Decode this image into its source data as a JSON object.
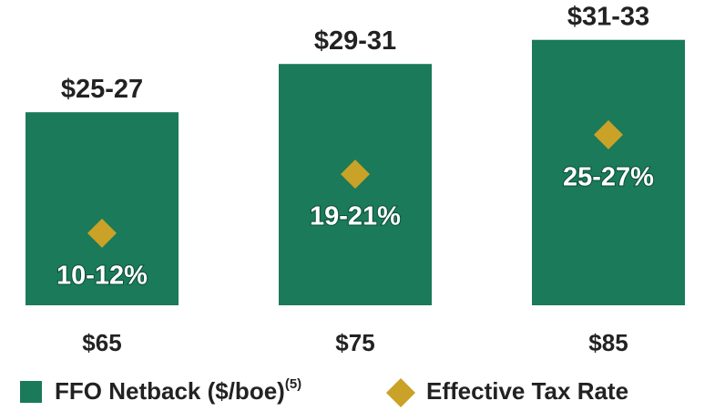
{
  "chart_data": {
    "type": "bar",
    "categories": [
      "$65",
      "$75",
      "$85"
    ],
    "series": [
      {
        "name": "FFO Netback ($/boe)",
        "name_superscript": "(5)",
        "color": "#1a7a5a",
        "values": [
          26,
          30,
          32
        ],
        "value_labels": [
          "$25-27",
          "$29-31",
          "$31-33"
        ]
      },
      {
        "name": "Effective Tax Rate",
        "type": "scatter",
        "marker": "diamond",
        "axis": "y2",
        "color": "#c9a227",
        "values": [
          11,
          20,
          26
        ],
        "value_labels": [
          "10-12%",
          "19-21%",
          "25-27%"
        ]
      }
    ],
    "ylim": [
      10,
      35
    ],
    "y2lim": [
      0,
      46
    ],
    "legend": "bottom"
  }
}
